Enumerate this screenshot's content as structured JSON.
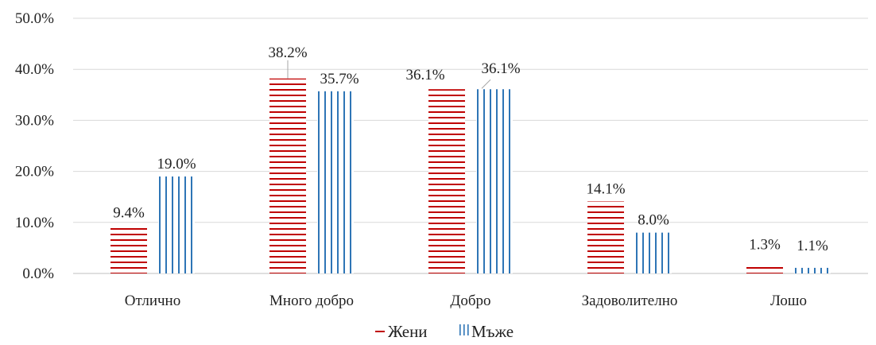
{
  "chart_data": {
    "type": "bar",
    "categories": [
      "Отлично",
      "Много добро",
      "Добро",
      "Задоволително",
      "Лошо"
    ],
    "series": [
      {
        "name": "Жени",
        "values": [
          9.4,
          38.2,
          36.1,
          14.1,
          1.3
        ],
        "labels": [
          "9.4%",
          "38.2%",
          "36.1%",
          "14.1%",
          "1.3%"
        ],
        "color": "#C00000",
        "pattern": "horizontal-lines"
      },
      {
        "name": "Мъже",
        "values": [
          19.0,
          35.7,
          36.1,
          8.0,
          1.1
        ],
        "labels": [
          "19.0%",
          "35.7%",
          "36.1%",
          "8.0%",
          "1.1%"
        ],
        "color": "#2E75B6",
        "pattern": "vertical-lines"
      }
    ],
    "y_ticks": [
      "0.0%",
      "10.0%",
      "20.0%",
      "30.0%",
      "40.0%",
      "50.0%"
    ],
    "ylim": [
      0,
      50
    ],
    "grid": true,
    "legend_position": "bottom-center",
    "title": "",
    "xlabel": "",
    "ylabel": ""
  }
}
